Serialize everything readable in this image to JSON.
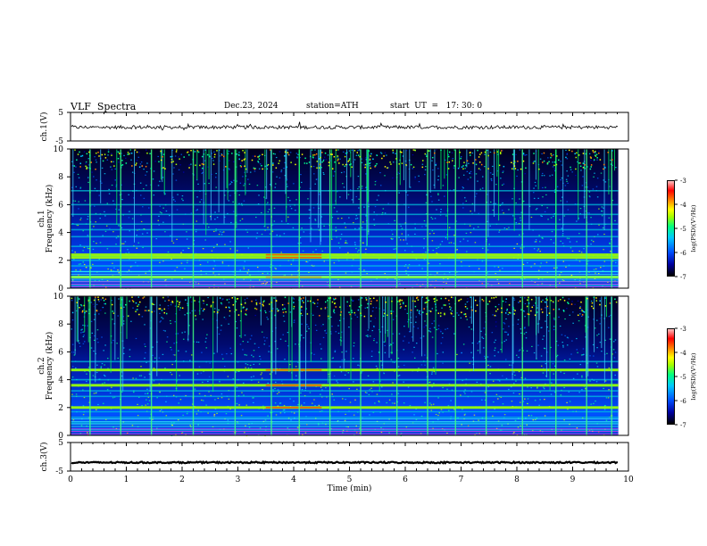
{
  "header": {
    "title": "VLF  Spectra",
    "date": "Dec.23, 2024",
    "station": "station=ATH",
    "start": "start  UT  =   17: 30: 0"
  },
  "chart_data": [
    {
      "type": "line",
      "name": "ch1-waveform",
      "ylabel": "ch.1(V)",
      "ylim": [
        -5,
        5
      ],
      "yticks": [
        "5",
        "-5"
      ],
      "xlim": [
        0,
        10
      ],
      "level": -0.2,
      "noise": 0.6
    },
    {
      "type": "heatmap",
      "name": "ch1-spectrogram",
      "ylabel": "ch.1\nFrequency (kHz)",
      "ylabel_lines": [
        "ch.1",
        "Frequency (kHz)"
      ],
      "ylim": [
        0,
        10
      ],
      "yticks": [
        "0",
        "2",
        "4",
        "6",
        "8",
        "10"
      ],
      "xlim": [
        0,
        10
      ],
      "colorbar": {
        "label": "log(PSD)(V²/Hz)",
        "ticks": [
          "-3",
          "-4",
          "-5",
          "-6",
          "-7"
        ],
        "range": [
          -7,
          -3
        ]
      },
      "bands_khz": [
        0.2,
        0.5,
        0.8,
        1.2,
        1.6,
        2.0,
        2.3,
        3.0,
        3.7,
        4.2,
        4.6,
        5.3,
        6.0,
        7.0
      ],
      "strong_bands_khz": [
        0.8,
        2.2,
        2.4
      ],
      "bursts_min": [
        0.35,
        0.9,
        1.45,
        2.2,
        2.95,
        3.6,
        4.1,
        4.65,
        5.2,
        5.85,
        6.4,
        6.9,
        7.45,
        8.1,
        8.7,
        9.25,
        9.7
      ]
    },
    {
      "type": "heatmap",
      "name": "ch2-spectrogram",
      "ylabel_lines": [
        "ch.2",
        "Frequency (kHz)"
      ],
      "ylim": [
        0,
        10
      ],
      "yticks": [
        "0",
        "2",
        "4",
        "6",
        "8",
        "10"
      ],
      "xlim": [
        0,
        10
      ],
      "colorbar": {
        "label": "log(PSD)(V²/Hz)",
        "ticks": [
          "-3",
          "-4",
          "-5",
          "-6",
          "-7"
        ],
        "range": [
          -7,
          -3
        ]
      },
      "bands_khz": [
        0.4,
        0.9,
        1.3,
        1.7,
        2.0,
        2.8,
        3.2,
        3.6,
        4.0,
        4.7,
        5.3
      ],
      "strong_bands_khz": [
        2.0,
        3.6,
        4.7
      ],
      "bursts_min": [
        0.35,
        0.9,
        1.45,
        2.2,
        2.95,
        3.6,
        4.1,
        4.65,
        5.2,
        5.85,
        6.4,
        6.9,
        7.45,
        8.1,
        8.7,
        9.25,
        9.7
      ]
    },
    {
      "type": "line",
      "name": "ch3-waveform",
      "ylabel": "ch.3(V)",
      "ylim": [
        -5,
        5
      ],
      "yticks": [
        "5",
        "-5"
      ],
      "xlim": [
        0,
        10
      ],
      "level": -2.0,
      "noise": 0.25
    }
  ],
  "xaxis": {
    "label": "Time  (min)",
    "ticks": [
      "0",
      "1",
      "2",
      "3",
      "4",
      "5",
      "6",
      "7",
      "8",
      "9",
      "10"
    ]
  }
}
